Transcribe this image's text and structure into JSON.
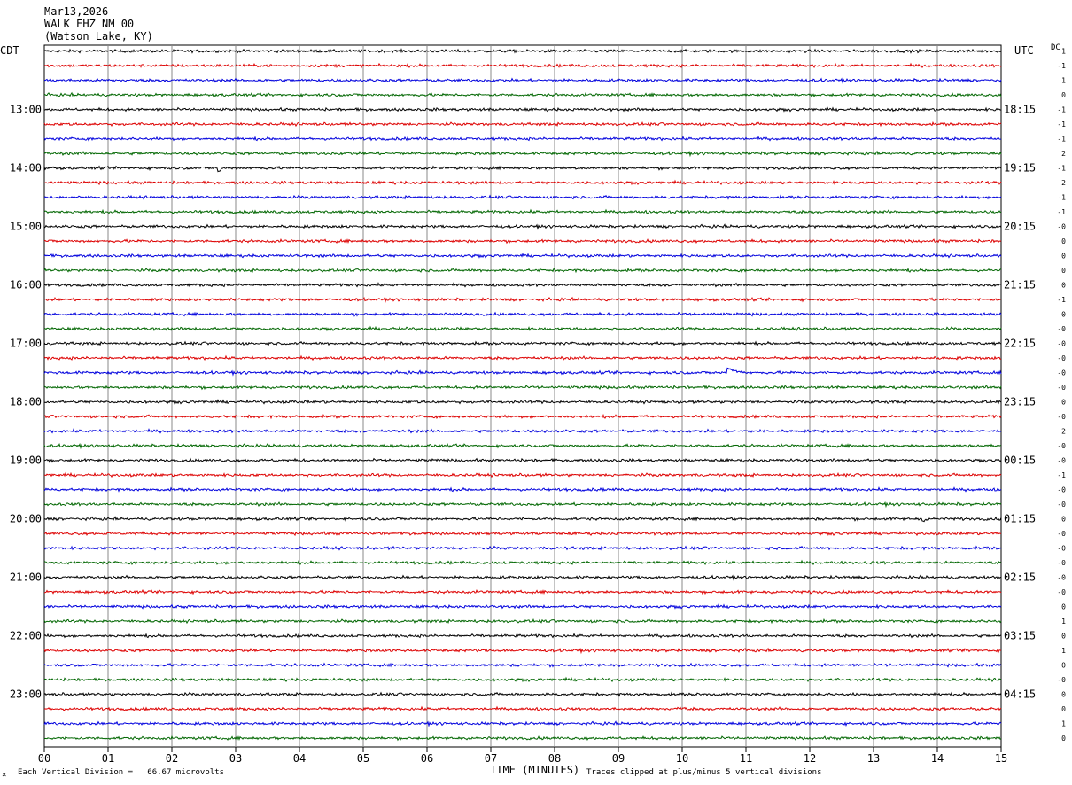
{
  "header": {
    "date": "Mar13,2026",
    "station": "WALK EHZ NM 00",
    "location": "(Watson Lake, KY)"
  },
  "left_tz": "CDT",
  "right_tz": "UTC",
  "dc_label": "DC",
  "xlabel": "TIME (MINUTES)",
  "footer_left": "Each Vertical Division =   66.67 microvolts",
  "footer_right": "Traces clipped at plus/minus 5 vertical divisions",
  "corner_mark": "×",
  "chart_data": {
    "type": "line",
    "xlabel": "TIME (MINUTES)",
    "xlim": [
      0,
      15
    ],
    "x_ticks": [
      "00",
      "01",
      "02",
      "03",
      "04",
      "05",
      "06",
      "07",
      "08",
      "09",
      "10",
      "11",
      "12",
      "13",
      "14",
      "15"
    ],
    "trace_colors": [
      "#000000",
      "#dd0000",
      "#0000dd",
      "#006600"
    ],
    "rows": 48,
    "minutes_per_row": 15,
    "left_hour_labels": [
      "13:00",
      "14:00",
      "15:00",
      "16:00",
      "17:00",
      "18:00",
      "19:00",
      "20:00",
      "21:00",
      "22:00",
      "23:00"
    ],
    "right_hour_labels": [
      "18:15",
      "19:15",
      "20:15",
      "21:15",
      "22:15",
      "23:15",
      "00:15",
      "01:15",
      "02:15",
      "03:15",
      "04:15"
    ],
    "dc_offsets": [
      "1",
      "-1",
      "1",
      "0",
      "-1",
      "-1",
      "-1",
      "2",
      "-1",
      "2",
      "-1",
      "-1",
      "-0",
      "0",
      "0",
      "0",
      "0",
      "-1",
      "0",
      "-0",
      "-0",
      "-0",
      "-0",
      "-0",
      "0",
      "-0",
      "2",
      "-0",
      "-0",
      "-1",
      "-0",
      "-0",
      "0",
      "-0",
      "-0",
      "-0",
      "-0",
      "-0",
      "0",
      "1",
      "0",
      "1",
      "0",
      "-0",
      "0",
      "0",
      "1",
      "0"
    ],
    "events": [
      {
        "row": 8,
        "minute": 2.73,
        "amplitude": 5,
        "duration": 0.05
      },
      {
        "row": 22,
        "minute": 10.72,
        "amplitude": 4,
        "duration": 0.25
      },
      {
        "row": 32,
        "minute": 13.78,
        "amplitude": 1.5,
        "duration": 0.1
      },
      {
        "row": 32,
        "minute": 4.68,
        "amplitude": 0.8,
        "duration": 0.1
      },
      {
        "row": 45,
        "minute": 9.95,
        "amplitude": 0.8,
        "duration": 0.3
      }
    ]
  }
}
